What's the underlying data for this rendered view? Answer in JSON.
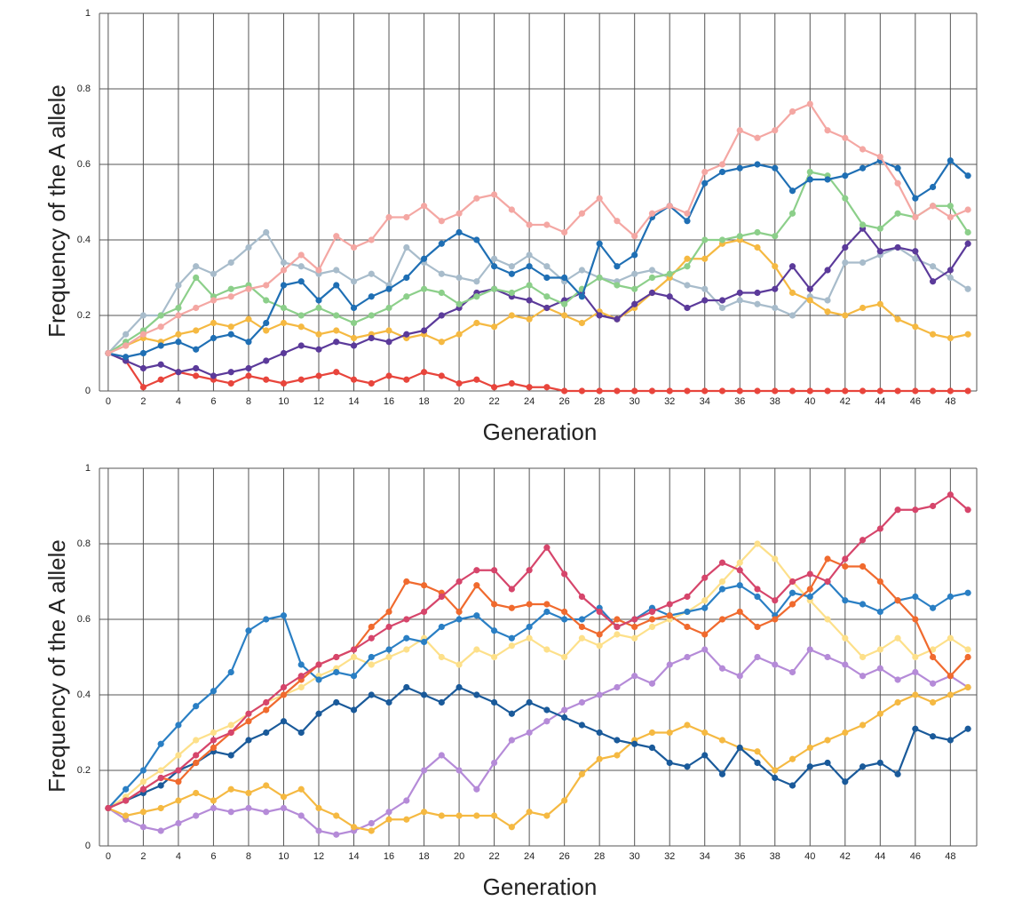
{
  "chart_data": [
    {
      "type": "line",
      "ylabel": "Frequency of the A allele",
      "xlabel": "Generation",
      "x": [
        0,
        1,
        2,
        3,
        4,
        5,
        6,
        7,
        8,
        9,
        10,
        11,
        12,
        13,
        14,
        15,
        16,
        17,
        18,
        19,
        20,
        21,
        22,
        23,
        24,
        25,
        26,
        27,
        28,
        29,
        30,
        31,
        32,
        33,
        34,
        35,
        36,
        37,
        38,
        39,
        40,
        41,
        42,
        43,
        44,
        45,
        46,
        47,
        48,
        49
      ],
      "xlim": [
        -0.5,
        49.5
      ],
      "ylim": [
        0,
        1
      ],
      "xticks": [
        0,
        2,
        4,
        6,
        8,
        10,
        12,
        14,
        16,
        18,
        20,
        22,
        24,
        26,
        28,
        30,
        32,
        34,
        36,
        38,
        40,
        42,
        44,
        46,
        48
      ],
      "yticks": [
        0,
        0.2,
        0.4,
        0.6,
        0.8,
        1
      ],
      "grid": true,
      "series": [
        {
          "color": "#a8bccb",
          "values": [
            0.1,
            0.15,
            0.2,
            0.2,
            0.28,
            0.33,
            0.31,
            0.34,
            0.38,
            0.42,
            0.34,
            0.33,
            0.31,
            0.32,
            0.29,
            0.31,
            0.28,
            0.38,
            0.34,
            0.31,
            0.3,
            0.29,
            0.35,
            0.33,
            0.36,
            0.33,
            0.29,
            0.32,
            0.3,
            0.29,
            0.31,
            0.32,
            0.3,
            0.28,
            0.27,
            0.22,
            0.24,
            0.23,
            0.22,
            0.2,
            0.25,
            0.24,
            0.34,
            0.34,
            0.36,
            0.38,
            0.35,
            0.33,
            0.3,
            0.27
          ]
        },
        {
          "color": "#e8453c",
          "values": [
            0.1,
            0.08,
            0.01,
            0.03,
            0.05,
            0.04,
            0.03,
            0.02,
            0.04,
            0.03,
            0.02,
            0.03,
            0.04,
            0.05,
            0.03,
            0.02,
            0.04,
            0.03,
            0.05,
            0.04,
            0.02,
            0.03,
            0.01,
            0.02,
            0.01,
            0.01,
            0,
            0,
            0,
            0,
            0,
            0,
            0,
            0,
            0,
            0,
            0,
            0,
            0,
            0,
            0,
            0,
            0,
            0,
            0,
            0,
            0,
            0,
            0,
            0
          ]
        },
        {
          "color": "#f5b942",
          "values": [
            0.1,
            0.12,
            0.14,
            0.13,
            0.15,
            0.16,
            0.18,
            0.17,
            0.19,
            0.16,
            0.18,
            0.17,
            0.15,
            0.16,
            0.14,
            0.15,
            0.16,
            0.14,
            0.15,
            0.13,
            0.15,
            0.18,
            0.17,
            0.2,
            0.19,
            0.22,
            0.2,
            0.18,
            0.21,
            0.19,
            0.22,
            0.26,
            0.3,
            0.35,
            0.35,
            0.39,
            0.4,
            0.38,
            0.33,
            0.26,
            0.24,
            0.21,
            0.2,
            0.22,
            0.23,
            0.19,
            0.17,
            0.15,
            0.14,
            0.15
          ]
        },
        {
          "color": "#5b3a9a",
          "values": [
            0.1,
            0.08,
            0.06,
            0.07,
            0.05,
            0.06,
            0.04,
            0.05,
            0.06,
            0.08,
            0.1,
            0.12,
            0.11,
            0.13,
            0.12,
            0.14,
            0.13,
            0.15,
            0.16,
            0.2,
            0.22,
            0.26,
            0.27,
            0.25,
            0.24,
            0.22,
            0.24,
            0.26,
            0.2,
            0.19,
            0.23,
            0.26,
            0.25,
            0.22,
            0.24,
            0.24,
            0.26,
            0.26,
            0.27,
            0.33,
            0.27,
            0.32,
            0.38,
            0.43,
            0.37,
            0.38,
            0.37,
            0.29,
            0.32,
            0.39
          ]
        },
        {
          "color": "#8ccf8a",
          "values": [
            0.1,
            0.13,
            0.16,
            0.2,
            0.22,
            0.3,
            0.25,
            0.27,
            0.28,
            0.24,
            0.22,
            0.2,
            0.22,
            0.2,
            0.18,
            0.2,
            0.22,
            0.25,
            0.27,
            0.26,
            0.23,
            0.25,
            0.27,
            0.26,
            0.28,
            0.25,
            0.23,
            0.27,
            0.3,
            0.28,
            0.27,
            0.3,
            0.31,
            0.33,
            0.4,
            0.4,
            0.41,
            0.42,
            0.41,
            0.47,
            0.58,
            0.57,
            0.51,
            0.44,
            0.43,
            0.47,
            0.46,
            0.49,
            0.49,
            0.42
          ]
        },
        {
          "color": "#1f6fb4",
          "values": [
            0.1,
            0.09,
            0.1,
            0.12,
            0.13,
            0.11,
            0.14,
            0.15,
            0.13,
            0.18,
            0.28,
            0.29,
            0.24,
            0.28,
            0.22,
            0.25,
            0.27,
            0.3,
            0.35,
            0.39,
            0.42,
            0.4,
            0.33,
            0.31,
            0.33,
            0.3,
            0.3,
            0.25,
            0.39,
            0.33,
            0.36,
            0.46,
            0.49,
            0.45,
            0.55,
            0.58,
            0.59,
            0.6,
            0.59,
            0.53,
            0.56,
            0.56,
            0.57,
            0.59,
            0.61,
            0.59,
            0.51,
            0.54,
            0.61,
            0.57
          ]
        },
        {
          "color": "#f4a7a3",
          "values": [
            0.1,
            0.12,
            0.15,
            0.17,
            0.2,
            0.22,
            0.24,
            0.25,
            0.27,
            0.28,
            0.32,
            0.36,
            0.32,
            0.41,
            0.38,
            0.4,
            0.46,
            0.46,
            0.49,
            0.45,
            0.47,
            0.51,
            0.52,
            0.48,
            0.44,
            0.44,
            0.42,
            0.47,
            0.51,
            0.45,
            0.41,
            0.47,
            0.49,
            0.47,
            0.58,
            0.6,
            0.69,
            0.67,
            0.69,
            0.74,
            0.76,
            0.69,
            0.67,
            0.64,
            0.62,
            0.55,
            0.46,
            0.49,
            0.46,
            0.48
          ]
        }
      ]
    },
    {
      "type": "line",
      "ylabel": "Frequency of the A allele",
      "xlabel": "Generation",
      "x": [
        0,
        1,
        2,
        3,
        4,
        5,
        6,
        7,
        8,
        9,
        10,
        11,
        12,
        13,
        14,
        15,
        16,
        17,
        18,
        19,
        20,
        21,
        22,
        23,
        24,
        25,
        26,
        27,
        28,
        29,
        30,
        31,
        32,
        33,
        34,
        35,
        36,
        37,
        38,
        39,
        40,
        41,
        42,
        43,
        44,
        45,
        46,
        47,
        48,
        49
      ],
      "xlim": [
        -0.5,
        49.5
      ],
      "ylim": [
        0,
        1
      ],
      "xticks": [
        0,
        2,
        4,
        6,
        8,
        10,
        12,
        14,
        16,
        18,
        20,
        22,
        24,
        26,
        28,
        30,
        32,
        34,
        36,
        38,
        40,
        42,
        44,
        46,
        48
      ],
      "yticks": [
        0,
        0.2,
        0.4,
        0.6,
        0.8,
        1
      ],
      "grid": true,
      "series": [
        {
          "color": "#fde08a",
          "values": [
            0.1,
            0.13,
            0.17,
            0.2,
            0.24,
            0.28,
            0.3,
            0.32,
            0.35,
            0.38,
            0.4,
            0.42,
            0.45,
            0.47,
            0.5,
            0.48,
            0.5,
            0.52,
            0.55,
            0.5,
            0.48,
            0.52,
            0.5,
            0.53,
            0.55,
            0.52,
            0.5,
            0.55,
            0.53,
            0.56,
            0.55,
            0.58,
            0.6,
            0.62,
            0.65,
            0.7,
            0.75,
            0.8,
            0.76,
            0.7,
            0.65,
            0.6,
            0.55,
            0.5,
            0.52,
            0.55,
            0.5,
            0.52,
            0.55,
            0.52
          ]
        },
        {
          "color": "#b58bd8",
          "values": [
            0.1,
            0.07,
            0.05,
            0.04,
            0.06,
            0.08,
            0.1,
            0.09,
            0.1,
            0.09,
            0.1,
            0.08,
            0.04,
            0.03,
            0.04,
            0.06,
            0.09,
            0.12,
            0.2,
            0.24,
            0.2,
            0.15,
            0.22,
            0.28,
            0.3,
            0.33,
            0.36,
            0.38,
            0.4,
            0.42,
            0.45,
            0.43,
            0.48,
            0.5,
            0.52,
            0.47,
            0.45,
            0.5,
            0.48,
            0.46,
            0.52,
            0.5,
            0.48,
            0.45,
            0.47,
            0.44,
            0.46,
            0.43,
            0.45,
            0.42
          ]
        },
        {
          "color": "#f5b942",
          "values": [
            0.1,
            0.08,
            0.09,
            0.1,
            0.12,
            0.14,
            0.12,
            0.15,
            0.14,
            0.16,
            0.13,
            0.15,
            0.1,
            0.08,
            0.05,
            0.04,
            0.07,
            0.07,
            0.09,
            0.08,
            0.08,
            0.08,
            0.08,
            0.05,
            0.09,
            0.08,
            0.12,
            0.19,
            0.23,
            0.24,
            0.28,
            0.3,
            0.3,
            0.32,
            0.3,
            0.28,
            0.26,
            0.25,
            0.2,
            0.23,
            0.26,
            0.28,
            0.3,
            0.32,
            0.35,
            0.38,
            0.4,
            0.38,
            0.4,
            0.42
          ]
        },
        {
          "color": "#1a5a9a",
          "values": [
            0.1,
            0.12,
            0.14,
            0.16,
            0.2,
            0.22,
            0.25,
            0.24,
            0.28,
            0.3,
            0.33,
            0.3,
            0.35,
            0.38,
            0.36,
            0.4,
            0.38,
            0.42,
            0.4,
            0.38,
            0.42,
            0.4,
            0.38,
            0.35,
            0.38,
            0.36,
            0.34,
            0.32,
            0.3,
            0.28,
            0.27,
            0.26,
            0.22,
            0.21,
            0.24,
            0.19,
            0.26,
            0.22,
            0.18,
            0.16,
            0.21,
            0.22,
            0.17,
            0.21,
            0.22,
            0.19,
            0.31,
            0.29,
            0.28,
            0.31
          ]
        },
        {
          "color": "#2a7fc4",
          "values": [
            0.1,
            0.15,
            0.2,
            0.27,
            0.32,
            0.37,
            0.41,
            0.46,
            0.57,
            0.6,
            0.61,
            0.48,
            0.44,
            0.46,
            0.45,
            0.5,
            0.52,
            0.55,
            0.54,
            0.58,
            0.6,
            0.61,
            0.57,
            0.55,
            0.58,
            0.62,
            0.6,
            0.6,
            0.63,
            0.58,
            0.6,
            0.63,
            0.61,
            0.62,
            0.63,
            0.68,
            0.69,
            0.66,
            0.61,
            0.67,
            0.66,
            0.7,
            0.65,
            0.64,
            0.62,
            0.65,
            0.66,
            0.63,
            0.66,
            0.67
          ]
        },
        {
          "color": "#f06a2e",
          "values": [
            0.1,
            0.12,
            0.15,
            0.18,
            0.17,
            0.22,
            0.26,
            0.3,
            0.33,
            0.36,
            0.4,
            0.44,
            0.48,
            0.5,
            0.52,
            0.58,
            0.62,
            0.7,
            0.69,
            0.67,
            0.62,
            0.69,
            0.64,
            0.63,
            0.64,
            0.64,
            0.62,
            0.58,
            0.56,
            0.6,
            0.58,
            0.6,
            0.61,
            0.58,
            0.56,
            0.6,
            0.62,
            0.58,
            0.6,
            0.64,
            0.68,
            0.76,
            0.74,
            0.74,
            0.7,
            0.65,
            0.6,
            0.5,
            0.45,
            0.5
          ]
        },
        {
          "color": "#d6456b",
          "values": [
            0.1,
            0.12,
            0.15,
            0.18,
            0.2,
            0.24,
            0.28,
            0.3,
            0.35,
            0.38,
            0.42,
            0.45,
            0.48,
            0.5,
            0.52,
            0.55,
            0.58,
            0.6,
            0.62,
            0.66,
            0.7,
            0.73,
            0.73,
            0.68,
            0.73,
            0.79,
            0.72,
            0.66,
            0.62,
            0.58,
            0.6,
            0.62,
            0.64,
            0.66,
            0.71,
            0.75,
            0.73,
            0.68,
            0.65,
            0.7,
            0.72,
            0.7,
            0.76,
            0.81,
            0.84,
            0.89,
            0.89,
            0.9,
            0.93,
            0.89
          ]
        }
      ]
    }
  ]
}
